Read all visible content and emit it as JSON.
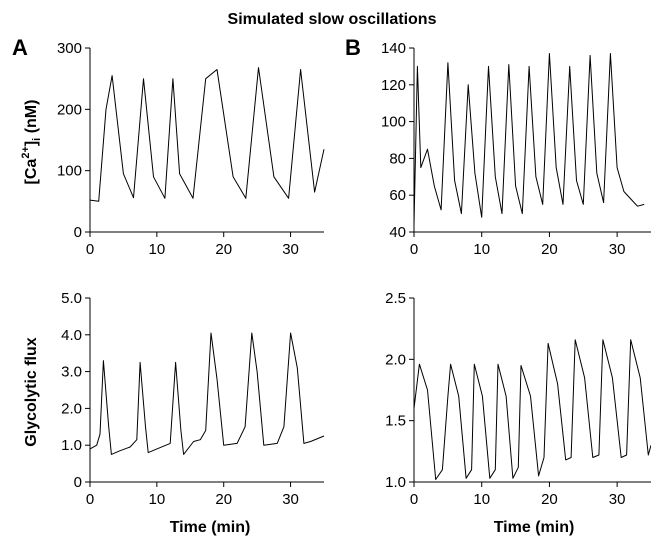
{
  "figure": {
    "title": "Simulated slow oscillations",
    "panel_labels": [
      "A",
      "B"
    ],
    "y_label_top": {
      "main": "[Ca",
      "sup": "2+",
      "close": "]",
      "sub": "i",
      "unit": " (nM)"
    },
    "y_label_bottom": "Glycolytic flux",
    "x_label": "Time (min)"
  },
  "chart_data": [
    {
      "id": "A-top",
      "type": "line",
      "xlim": [
        0,
        35
      ],
      "ylim": [
        0,
        300
      ],
      "xticks": [
        "0",
        "10",
        "20",
        "30"
      ],
      "yticks": [
        "0",
        "100",
        "200",
        "300"
      ],
      "x": [
        0,
        1.3,
        2.4,
        3.3,
        5.0,
        6.5,
        8.0,
        9.5,
        11.2,
        12.4,
        13.4,
        15.4,
        17.3,
        19.0,
        21.4,
        23.3,
        25.2,
        27.5,
        29.7,
        31.5,
        33.6,
        35.0
      ],
      "y": [
        52,
        50,
        200,
        255,
        95,
        56,
        250,
        90,
        55,
        250,
        95,
        55,
        250,
        265,
        90,
        55,
        268,
        90,
        55,
        265,
        65,
        135
      ],
      "color": "#000000"
    },
    {
      "id": "B-top",
      "type": "line",
      "xlim": [
        0,
        35
      ],
      "ylim": [
        40,
        140
      ],
      "xticks": [
        "0",
        "10",
        "20",
        "30"
      ],
      "yticks": [
        "40",
        "60",
        "80",
        "100",
        "120",
        "140"
      ],
      "x": [
        0,
        0.5,
        1.0,
        2.0,
        3.0,
        4.0,
        5.0,
        6.0,
        7.0,
        8.0,
        9.0,
        10.0,
        11.0,
        12.0,
        13.0,
        14.0,
        15.0,
        16.0,
        17.0,
        18.0,
        19.0,
        20.0,
        21.0,
        22.0,
        23.0,
        24.0,
        25.0,
        26.0,
        27.0,
        28.0,
        29.0,
        30.0,
        31.0,
        32.0,
        33.0,
        34.0
      ],
      "y": [
        44,
        130,
        75,
        85,
        65,
        52,
        132,
        68,
        50,
        120,
        72,
        48,
        130,
        70,
        50,
        131,
        65,
        50,
        130,
        70,
        55,
        137,
        75,
        55,
        130,
        68,
        55,
        136,
        72,
        56,
        137,
        75,
        62,
        58,
        54,
        55
      ],
      "color": "#000000"
    },
    {
      "id": "A-bottom",
      "type": "line",
      "xlim": [
        0,
        35
      ],
      "ylim": [
        0,
        5
      ],
      "xticks": [
        "0",
        "10",
        "20",
        "30"
      ],
      "yticks": [
        "0",
        "1.0",
        "2.0",
        "3.0",
        "4.0",
        "5.0"
      ],
      "x": [
        0,
        1.0,
        1.5,
        2.0,
        2.8,
        3.2,
        4.5,
        6.0,
        7.0,
        7.5,
        8.3,
        8.7,
        10.0,
        12.0,
        12.8,
        13.6,
        14.0,
        15.5,
        16.5,
        17.3,
        18.1,
        19.0,
        20.0,
        22.0,
        23.2,
        24.2,
        25.0,
        26.0,
        28.0,
        29.0,
        30.0,
        31.0,
        32.0,
        33.0,
        35.0
      ],
      "y": [
        0.9,
        1.0,
        1.3,
        3.3,
        1.5,
        0.75,
        0.85,
        0.95,
        1.15,
        3.25,
        1.5,
        0.8,
        0.9,
        1.05,
        3.25,
        1.4,
        0.75,
        1.1,
        1.15,
        1.4,
        4.05,
        2.8,
        1.0,
        1.05,
        1.5,
        4.05,
        3.0,
        1.0,
        1.05,
        1.5,
        4.05,
        3.1,
        1.05,
        1.1,
        1.25
      ],
      "color": "#000000"
    },
    {
      "id": "B-bottom",
      "type": "line",
      "xlim": [
        0,
        35
      ],
      "ylim": [
        1.0,
        2.5
      ],
      "xticks": [
        "0",
        "10",
        "20",
        "30"
      ],
      "yticks": [
        "1.0",
        "1.5",
        "2.0",
        "2.5"
      ],
      "x": [
        0,
        0.8,
        2.0,
        3.2,
        4.2,
        5.0,
        5.4,
        6.6,
        7.7,
        8.5,
        8.9,
        10.1,
        11.2,
        12.0,
        12.4,
        13.6,
        14.6,
        15.4,
        15.8,
        17.2,
        18.4,
        19.2,
        19.8,
        21.2,
        22.4,
        23.2,
        23.8,
        25.2,
        26.4,
        27.3,
        27.9,
        29.3,
        30.6,
        31.4,
        32.0,
        33.4,
        34.6,
        35.0
      ],
      "y": [
        1.6,
        1.96,
        1.75,
        1.02,
        1.1,
        1.7,
        1.96,
        1.7,
        1.03,
        1.1,
        1.96,
        1.7,
        1.03,
        1.1,
        1.96,
        1.7,
        1.03,
        1.12,
        1.95,
        1.7,
        1.05,
        1.2,
        2.13,
        1.8,
        1.18,
        1.2,
        2.16,
        1.85,
        1.2,
        1.22,
        2.16,
        1.85,
        1.2,
        1.22,
        2.16,
        1.85,
        1.22,
        1.3
      ],
      "color": "#000000"
    }
  ]
}
